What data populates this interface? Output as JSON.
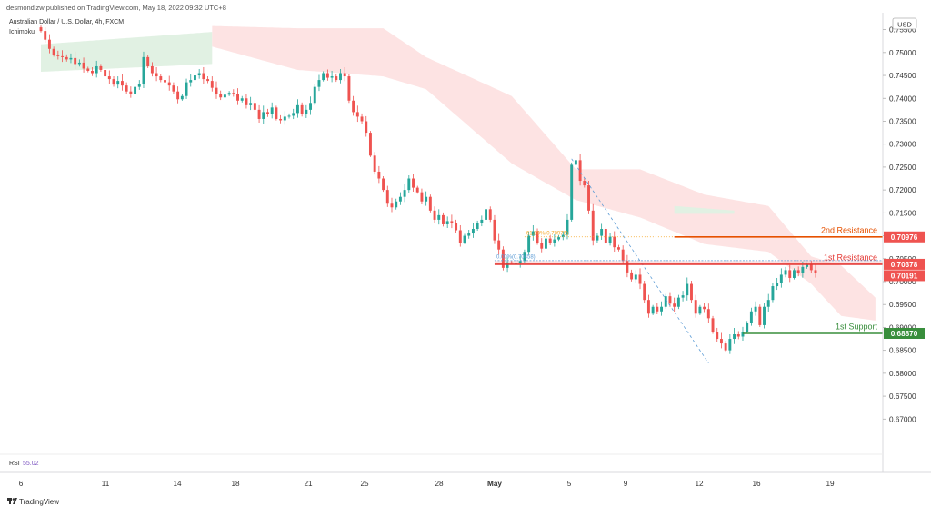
{
  "header": {
    "publisher_line": "desmondizw published on TradingView.com, May 18, 2022 09:32 UTC+8",
    "instrument": "Australian Dollar / U.S. Dollar, 4h, FXCM",
    "indicator": "Ichimoku"
  },
  "currency_label": "USD",
  "rsi": {
    "label": "RSI",
    "value": "55.02"
  },
  "footer": {
    "brand": "TradingView"
  },
  "colors": {
    "up": "#26a69a",
    "down": "#ef5350",
    "cloud_bear": "#fde3e3",
    "cloud_bull": "#e1f1e3",
    "resistance_line": "#e53935",
    "second_resistance_line": "#e65100",
    "support_line": "#388e3c",
    "fib_line": "#5b9bd5",
    "fib_dotted": "#f6a623",
    "badge_red": "#ef5350",
    "badge_green": "#388e3c"
  },
  "chart_data": {
    "type": "candlestick",
    "timeframe": "4h",
    "y_axis": {
      "ticks": [
        0.755,
        0.75,
        0.745,
        0.74,
        0.735,
        0.73,
        0.725,
        0.72,
        0.715,
        0.71,
        0.705,
        0.7,
        0.695,
        0.69,
        0.685,
        0.68,
        0.675,
        0.67
      ],
      "tick_labels": [
        "0.75500",
        "0.75000",
        "0.74500",
        "0.74000",
        "0.73500",
        "0.73000",
        "0.72500",
        "0.72000",
        "0.71500",
        "0.71000",
        "0.70500",
        "0.70000",
        "0.69500",
        "0.69000",
        "0.68500",
        "0.68000",
        "0.67500",
        "0.67000"
      ],
      "ylim": [
        0.6655,
        0.7575
      ]
    },
    "x_axis": {
      "tick_labels": [
        "6",
        "11",
        "14",
        "18",
        "21",
        "25",
        "28",
        "May",
        "5",
        "9",
        "12",
        "16",
        "19"
      ]
    },
    "closes": [
      0.7547,
      0.7528,
      0.7508,
      0.7495,
      0.7492,
      0.749,
      0.7485,
      0.7488,
      0.7475,
      0.7478,
      0.7465,
      0.746,
      0.7455,
      0.747,
      0.7462,
      0.7448,
      0.7442,
      0.743,
      0.7438,
      0.7428,
      0.7415,
      0.741,
      0.7425,
      0.7432,
      0.749,
      0.747,
      0.7455,
      0.7448,
      0.744,
      0.7435,
      0.7428,
      0.7415,
      0.7398,
      0.7405,
      0.7435,
      0.744,
      0.745,
      0.7455,
      0.7442,
      0.7438,
      0.7423,
      0.741,
      0.7402,
      0.7408,
      0.7412,
      0.741,
      0.7395,
      0.74,
      0.7385,
      0.739,
      0.7375,
      0.7355,
      0.737,
      0.7365,
      0.738,
      0.7355,
      0.7352,
      0.736,
      0.7362,
      0.7368,
      0.7385,
      0.7365,
      0.7375,
      0.739,
      0.7425,
      0.744,
      0.7455,
      0.7445,
      0.7448,
      0.744,
      0.7455,
      0.7448,
      0.7395,
      0.737,
      0.736,
      0.735,
      0.7325,
      0.7275,
      0.724,
      0.7225,
      0.72,
      0.717,
      0.7162,
      0.7175,
      0.7185,
      0.72,
      0.7225,
      0.7205,
      0.7195,
      0.7175,
      0.7185,
      0.7155,
      0.7135,
      0.7145,
      0.7125,
      0.7132,
      0.7128,
      0.7112,
      0.7085,
      0.71,
      0.7105,
      0.7115,
      0.7128,
      0.7135,
      0.7158,
      0.7135,
      0.709,
      0.707,
      0.703,
      0.7042,
      0.704,
      0.704,
      0.7045,
      0.7065,
      0.71,
      0.711,
      0.7085,
      0.7072,
      0.7094,
      0.7085,
      0.7092,
      0.7097,
      0.7102,
      0.7135,
      0.7255,
      0.7265,
      0.722,
      0.721,
      0.7155,
      0.709,
      0.71,
      0.7115,
      0.7085,
      0.7098,
      0.7075,
      0.707,
      0.7045,
      0.702,
      0.7005,
      0.7015,
      0.6995,
      0.696,
      0.693,
      0.6945,
      0.6935,
      0.6945,
      0.6968,
      0.6952,
      0.6945,
      0.6965,
      0.697,
      0.6995,
      0.696,
      0.693,
      0.6945,
      0.694,
      0.692,
      0.689,
      0.6875,
      0.6865,
      0.685,
      0.6875,
      0.6885,
      0.688,
      0.689,
      0.691,
      0.6935,
      0.6945,
      0.6905,
      0.6945,
      0.696,
      0.699,
      0.6998,
      0.7015,
      0.7025,
      0.7008,
      0.7025,
      0.7018,
      0.7032,
      0.7037,
      0.7025,
      0.7019
    ],
    "cloud": {
      "segments": [
        {
          "color": "bull",
          "upper": [
            [
              0,
              0.7518
            ],
            [
              40,
              0.7545
            ]
          ],
          "lower": [
            [
              0,
              0.7458
            ],
            [
              40,
              0.7475
            ]
          ]
        },
        {
          "color": "bear",
          "upper": [
            [
              40,
              0.7558
            ],
            [
              60,
              0.7553
            ],
            [
              80,
              0.7553
            ],
            [
              90,
              0.749
            ],
            [
              110,
              0.7405
            ],
            [
              125,
              0.7245
            ],
            [
              140,
              0.7245
            ],
            [
              155,
              0.719
            ],
            [
              170,
              0.7165
            ],
            [
              180,
              0.7055
            ],
            [
              187,
              0.7035
            ],
            [
              195,
              0.6965
            ]
          ],
          "lower": [
            [
              40,
              0.7513
            ],
            [
              60,
              0.7462
            ],
            [
              80,
              0.7448
            ],
            [
              90,
              0.742
            ],
            [
              110,
              0.7258
            ],
            [
              125,
              0.7178
            ],
            [
              140,
              0.714
            ],
            [
              155,
              0.7082
            ],
            [
              170,
              0.7065
            ],
            [
              180,
              0.6995
            ],
            [
              187,
              0.6925
            ],
            [
              195,
              0.6915
            ]
          ]
        },
        {
          "color": "bull",
          "upper": [
            [
              148,
              0.7165
            ],
            [
              162,
              0.7155
            ]
          ],
          "lower": [
            [
              148,
              0.7148
            ],
            [
              162,
              0.7148
            ]
          ]
        }
      ]
    },
    "levels": [
      {
        "name": "2nd Resistance",
        "value": 0.70976,
        "badge": "0.70976",
        "start_index": 148,
        "style": "second_resistance"
      },
      {
        "name": "1st Resistance",
        "value": 0.70378,
        "badge": "0.70378",
        "start_index": 106,
        "style": "resistance"
      },
      {
        "name": "1st Support",
        "value": 0.6887,
        "badge": "0.68870",
        "start_index": 164,
        "style": "support"
      }
    ],
    "last_price": {
      "value": 0.70191,
      "badge": "0.70191"
    },
    "fib": {
      "labels": [
        {
          "text": "0.00%(0.70458)",
          "value": 0.70458,
          "index": 106
        },
        {
          "text": "61.80%(0.70976)",
          "value": 0.70976,
          "index": 113
        }
      ],
      "diagonal": [
        {
          "index": 124,
          "value": 0.7268
        },
        {
          "index": 156,
          "value": 0.6822
        }
      ]
    },
    "resistance_zone": {
      "from": 0.70378,
      "to": 0.7045,
      "start_index": 106
    }
  }
}
